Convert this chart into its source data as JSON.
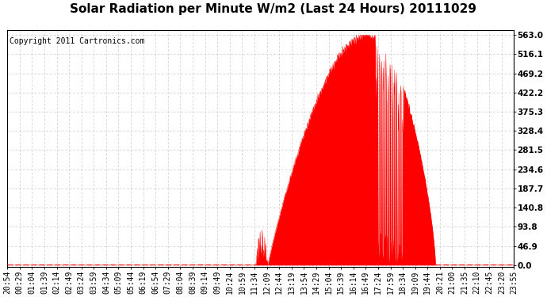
{
  "title": "Solar Radiation per Minute W/m2 (Last 24 Hours) 20111029",
  "copyright_text": "Copyright 2011 Cartronics.com",
  "bg_color": "#ffffff",
  "plot_bg_color": "#ffffff",
  "fill_color": "#ff0000",
  "line_color": "#ff0000",
  "dashed_line_color": "#ff0000",
  "grid_color": "#c8c8c8",
  "ytick_labels": [
    0.0,
    46.9,
    93.8,
    140.8,
    187.7,
    234.6,
    281.5,
    328.4,
    375.3,
    422.2,
    469.2,
    516.1,
    563.0
  ],
  "ymax": 563.0,
  "ymin": 0.0,
  "x_labels": [
    "20:54",
    "00:29",
    "01:04",
    "01:39",
    "02:14",
    "02:49",
    "03:24",
    "03:59",
    "04:34",
    "05:09",
    "05:44",
    "06:19",
    "06:54",
    "07:29",
    "08:04",
    "08:39",
    "09:14",
    "09:49",
    "10:24",
    "10:59",
    "11:34",
    "12:09",
    "12:44",
    "13:19",
    "13:54",
    "14:29",
    "15:04",
    "15:39",
    "16:14",
    "16:49",
    "17:24",
    "17:59",
    "18:34",
    "19:09",
    "19:44",
    "20:21",
    "21:00",
    "21:35",
    "22:10",
    "22:45",
    "23:20",
    "23:55"
  ],
  "title_fontsize": 11,
  "copyright_fontsize": 7,
  "tick_fontsize": 7,
  "ytick_fontsize": 7.5,
  "figwidth": 6.9,
  "figheight": 3.75,
  "dpi": 100
}
